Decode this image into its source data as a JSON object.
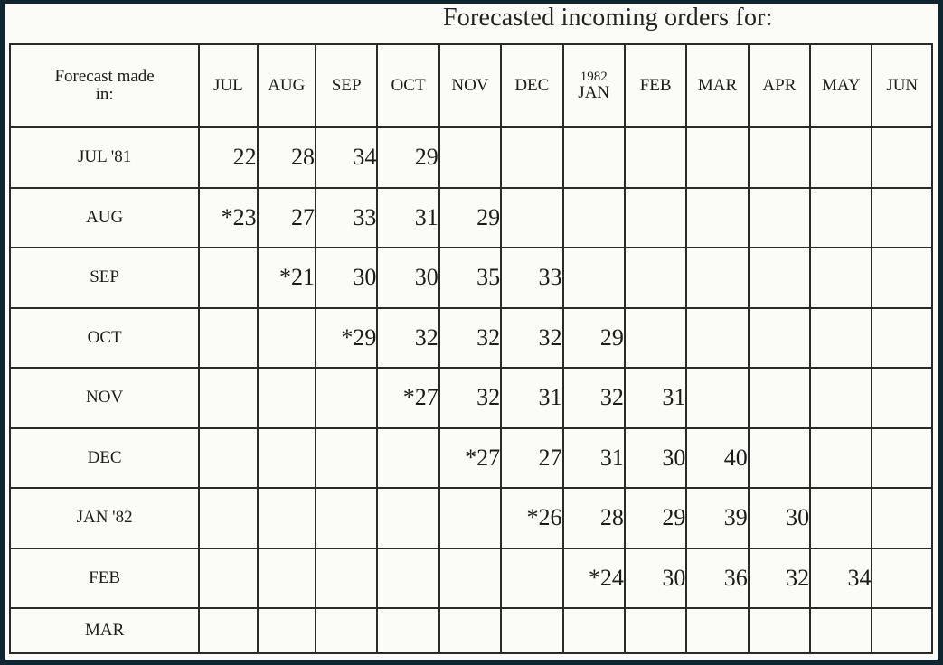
{
  "caption": "Forecasted incoming orders for:",
  "corner_label_line1": "Forecast made",
  "corner_label_line2": "in:",
  "columns": [
    {
      "label": "JUL"
    },
    {
      "label": "AUG"
    },
    {
      "label": "SEP"
    },
    {
      "label": "OCT"
    },
    {
      "label": "NOV"
    },
    {
      "label": "DEC"
    },
    {
      "year": "1982",
      "label": "JAN"
    },
    {
      "label": "FEB"
    },
    {
      "label": "MAR"
    },
    {
      "label": "APR"
    },
    {
      "label": "MAY"
    },
    {
      "label": "JUN"
    }
  ],
  "rows": [
    {
      "label": "JUL '81",
      "cells": [
        "22",
        "28",
        "34",
        "29",
        "",
        "",
        "",
        "",
        "",
        "",
        "",
        ""
      ]
    },
    {
      "label": "AUG",
      "cells": [
        "*23",
        "27",
        "33",
        "31",
        "29",
        "",
        "",
        "",
        "",
        "",
        "",
        ""
      ]
    },
    {
      "label": "SEP",
      "cells": [
        "",
        "*21",
        "30",
        "30",
        "35",
        "33",
        "",
        "",
        "",
        "",
        "",
        ""
      ]
    },
    {
      "label": "OCT",
      "cells": [
        "",
        "",
        "*29",
        "32",
        "32",
        "32",
        "29",
        "",
        "",
        "",
        "",
        ""
      ]
    },
    {
      "label": "NOV",
      "cells": [
        "",
        "",
        "",
        "*27",
        "32",
        "31",
        "32",
        "31",
        "",
        "",
        "",
        ""
      ]
    },
    {
      "label": "DEC",
      "cells": [
        "",
        "",
        "",
        "",
        "*27",
        "27",
        "31",
        "30",
        "40",
        "",
        "",
        ""
      ]
    },
    {
      "label": "JAN '82",
      "cells": [
        "",
        "",
        "",
        "",
        "",
        "*26",
        "28",
        "29",
        "39",
        "30",
        "",
        ""
      ]
    },
    {
      "label": "FEB",
      "cells": [
        "",
        "",
        "",
        "",
        "",
        "",
        "*24",
        "30",
        "36",
        "32",
        "34",
        ""
      ]
    },
    {
      "label": "MAR",
      "cells": [
        "",
        "",
        "",
        "",
        "",
        "",
        "",
        "",
        "",
        "",
        "",
        ""
      ]
    }
  ]
}
